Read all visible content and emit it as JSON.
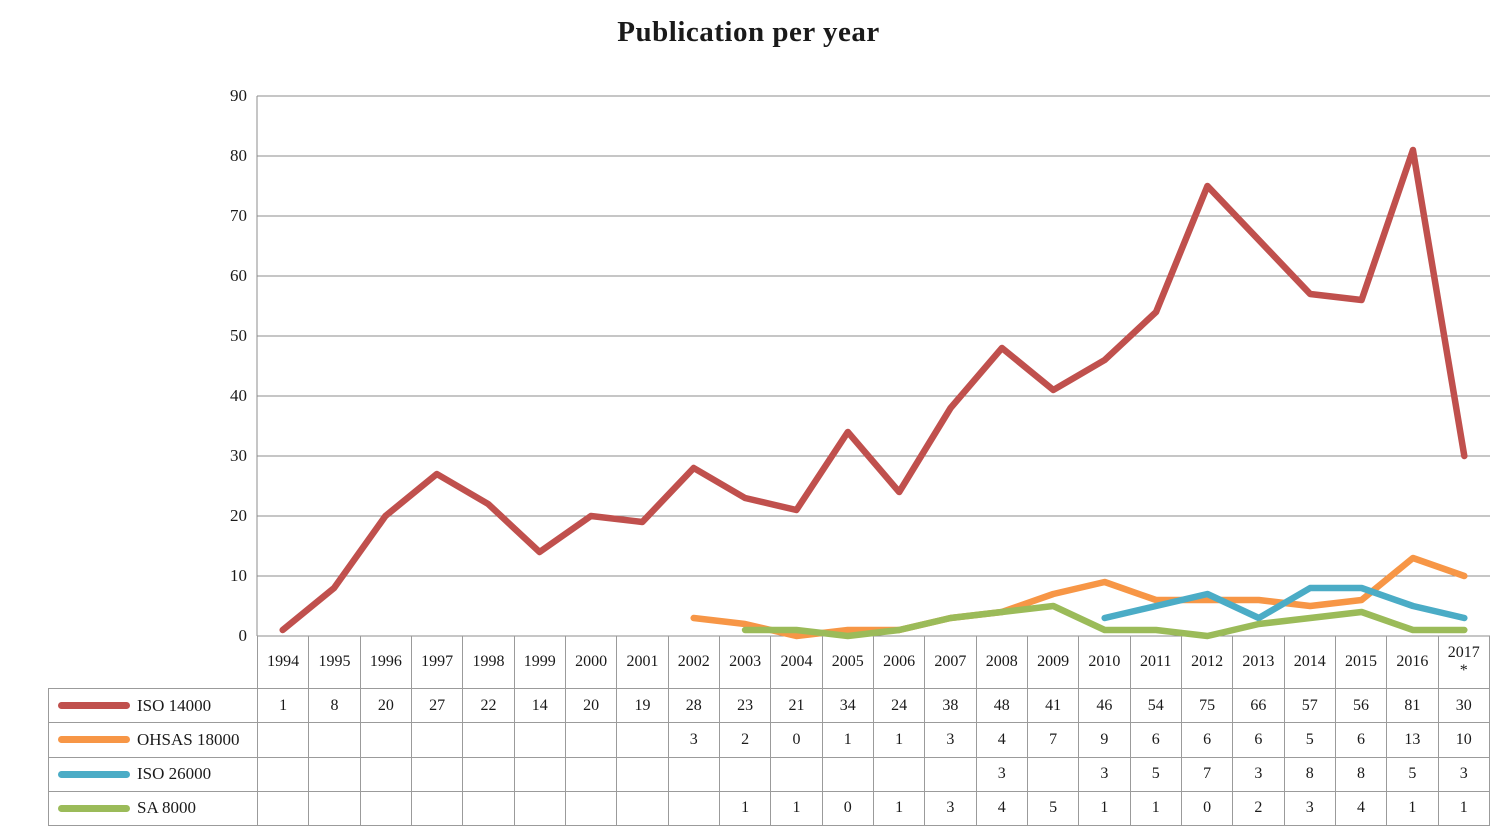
{
  "chart_data": {
    "type": "line",
    "title": "Publication per year",
    "categories": [
      "1994",
      "1995",
      "1996",
      "1997",
      "1998",
      "1999",
      "2000",
      "2001",
      "2002",
      "2003",
      "2004",
      "2005",
      "2006",
      "2007",
      "2008",
      "2009",
      "2010",
      "2011",
      "2012",
      "2013",
      "2014",
      "2015",
      "2016",
      "2017\n*"
    ],
    "series": [
      {
        "name": "ISO 14000",
        "color": "#C0504D",
        "values": [
          1,
          8,
          20,
          27,
          22,
          14,
          20,
          19,
          28,
          23,
          21,
          34,
          24,
          38,
          48,
          41,
          46,
          54,
          75,
          66,
          57,
          56,
          81,
          30
        ]
      },
      {
        "name": "OHSAS 18000",
        "color": "#F79646",
        "values": [
          null,
          null,
          null,
          null,
          null,
          null,
          null,
          null,
          3,
          2,
          0,
          1,
          1,
          3,
          4,
          7,
          9,
          6,
          6,
          6,
          5,
          6,
          13,
          10
        ]
      },
      {
        "name": "ISO 26000",
        "color": "#4BACC6",
        "values": [
          null,
          null,
          null,
          null,
          null,
          null,
          null,
          null,
          null,
          null,
          null,
          null,
          null,
          null,
          3,
          null,
          3,
          5,
          7,
          3,
          8,
          8,
          5,
          3
        ]
      },
      {
        "name": "SA 8000",
        "color": "#9BBB59",
        "values": [
          null,
          null,
          null,
          null,
          null,
          null,
          null,
          null,
          null,
          1,
          1,
          0,
          1,
          3,
          4,
          5,
          1,
          1,
          0,
          2,
          3,
          4,
          1,
          1
        ]
      }
    ],
    "ylim": [
      0,
      90
    ],
    "ytick_step": 10,
    "yticks": [
      0,
      10,
      20,
      30,
      40,
      50,
      60,
      70,
      80,
      90
    ],
    "grid": true,
    "legend_position": "table-left",
    "grid_color": "#8c8c8c",
    "table_border_color": "#9b9b9b"
  }
}
